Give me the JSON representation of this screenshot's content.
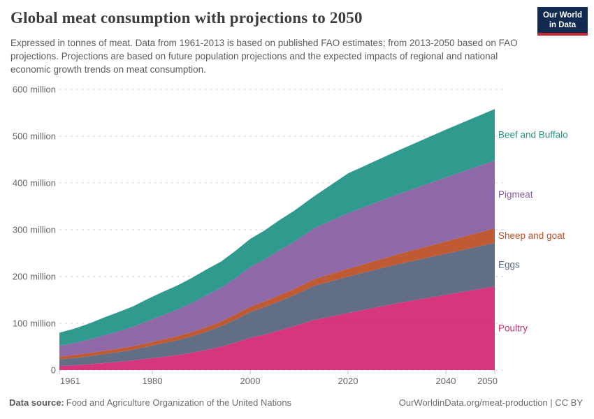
{
  "header": {
    "title": "Global meat consumption with projections to 2050",
    "subtitle": "Expressed in tonnes of meat. Data from 1961-2013 is based on published FAO estimates; from 2013-2050 based on FAO projections. Projections are based on future population projections and the expected impacts of regional and national economic growth trends on meat consumption.",
    "logo": {
      "line1": "Our World",
      "line2": "in Data",
      "bg_color": "#102a52",
      "accent_color": "#be2d32"
    }
  },
  "chart_data": {
    "type": "area",
    "stacked": true,
    "title": "Global meat consumption with projections to 2050",
    "legend_position": "right",
    "grid": "horizontal-dashed",
    "x_range": [
      1961,
      2050
    ],
    "ylim": [
      0,
      600
    ],
    "x": [
      1961,
      1964,
      1967,
      1970,
      1973,
      1976,
      1979,
      1982,
      1985,
      1988,
      1991,
      1994,
      1997,
      2000,
      2003,
      2006,
      2009,
      2013,
      2020,
      2030,
      2040,
      2050
    ],
    "series": [
      {
        "name": "Poultry",
        "color": "#d7367d",
        "label_color": "#cf2d74",
        "values": [
          9,
          10.5,
          12.5,
          15,
          17.5,
          20.5,
          24.5,
          28,
          32,
          37,
          43,
          50,
          59,
          69,
          76,
          85,
          94,
          107,
          122,
          143,
          161,
          179
        ]
      },
      {
        "name": "Eggs",
        "color": "#626e85",
        "label_color": "#58667e",
        "values": [
          14,
          15.5,
          17,
          19,
          21,
          23,
          26,
          29,
          31.5,
          35,
          39,
          43.5,
          49,
          55,
          59,
          62.5,
          66,
          73,
          78,
          83,
          88,
          93
        ]
      },
      {
        "name": "Sheep and goat",
        "color": "#c05a32",
        "label_color": "#bb5028",
        "values": [
          6,
          6.3,
          6.7,
          7,
          7.2,
          7.4,
          7.5,
          8,
          8.5,
          9.2,
          9.8,
          10.3,
          11,
          11.5,
          12,
          12.8,
          13.3,
          14,
          16.5,
          21,
          26,
          31
        ]
      },
      {
        "name": "Pigmeat",
        "color": "#9069a8",
        "label_color": "#855d9e",
        "values": [
          23,
          25.5,
          29,
          33,
          37,
          41.5,
          47,
          52,
          57,
          62,
          68,
          72,
          78,
          85,
          90,
          96,
          101,
          109,
          119,
          128,
          137,
          145
        ]
      },
      {
        "name": "Beef and Buffalo",
        "color": "#309a8f",
        "label_color": "#27917f",
        "values": [
          28,
          30.5,
          34,
          38,
          41,
          43.5,
          47,
          49.5,
          51.5,
          53.5,
          55,
          56,
          58,
          60,
          62,
          64.5,
          66.5,
          68,
          85,
          93,
          102,
          110
        ]
      }
    ],
    "y_ticks": [
      {
        "value": 0,
        "label": "0"
      },
      {
        "value": 100,
        "label": "100 million"
      },
      {
        "value": 200,
        "label": "200 million"
      },
      {
        "value": 300,
        "label": "300 million"
      },
      {
        "value": 400,
        "label": "400 million"
      },
      {
        "value": 500,
        "label": "500 million"
      },
      {
        "value": 600,
        "label": "600 million"
      }
    ],
    "x_ticks": [
      1961,
      1980,
      2000,
      2020,
      2040,
      2050
    ],
    "axis_text_color": "#666666"
  },
  "footer": {
    "source_label": "Data source:",
    "source_value": "Food and Agriculture Organization of the United Nations",
    "attribution": "OurWorldinData.org/meat-production | CC BY"
  }
}
